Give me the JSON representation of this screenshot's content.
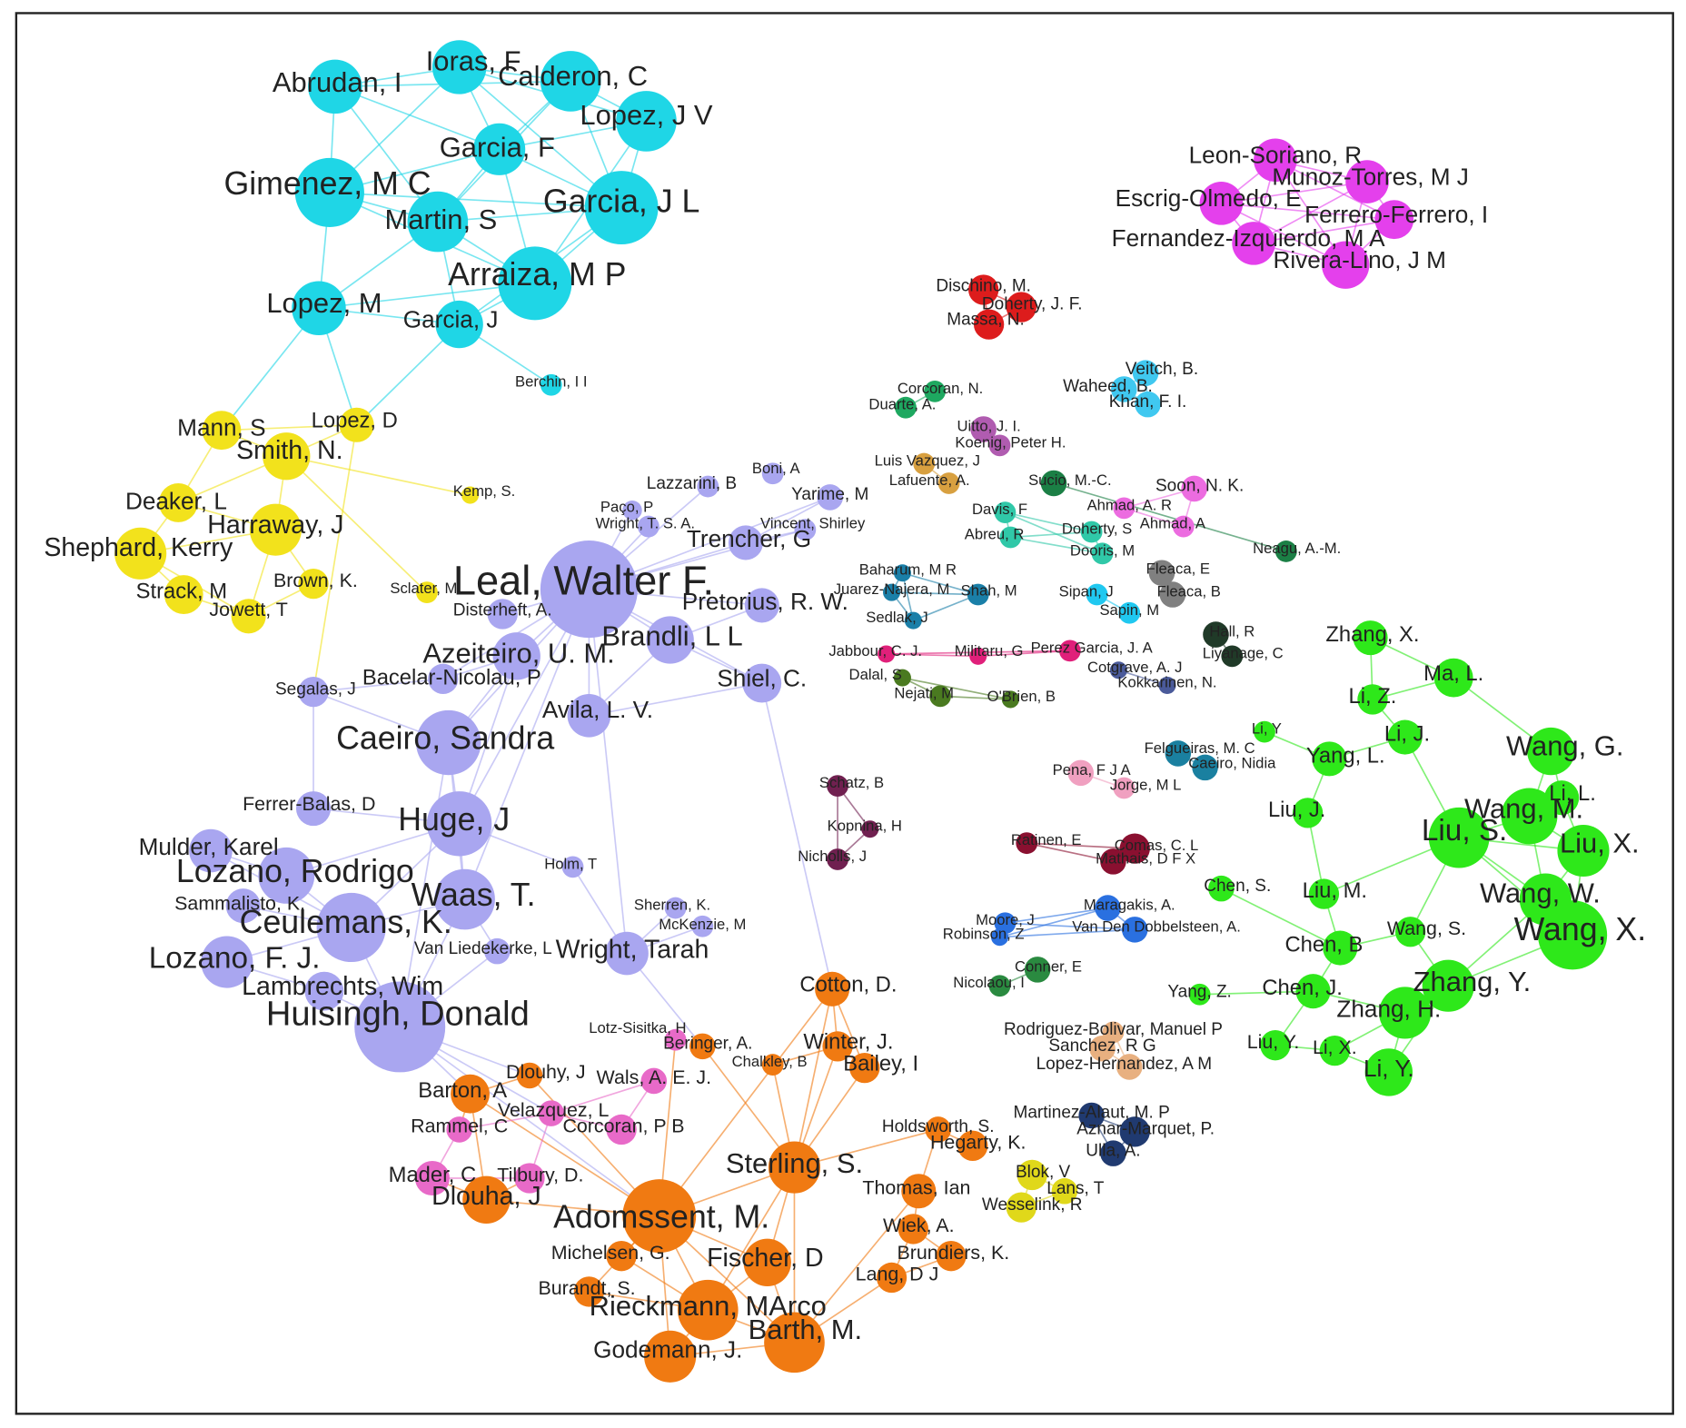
{
  "clusters": [
    {
      "color": "#1fd6e6",
      "nodes": [
        "Abrudan, I",
        "Ioras, F",
        "Calderon, C",
        "Lopez, J V",
        "Garcia, F",
        "Gimenez, M C",
        "Martin, S",
        "Garcia, J L",
        "Arraiza, M P",
        "Lopez, M",
        "Garcia, J",
        "Berchin, I I"
      ]
    },
    {
      "color": "#f2e21c",
      "nodes": [
        "Lopez, D",
        "Mann, S",
        "Smith, N.",
        "Kemp, S.",
        "Deaker, L",
        "Harraway, J",
        "Shephard, Kerry",
        "Brown, K.",
        "Strack, M",
        "Jowett, T",
        "Sclater, M"
      ]
    },
    {
      "color": "#a9a6f0",
      "nodes": [
        "Leal, Walter F.",
        "Lazzarini, B",
        "Boni, A",
        "Yarime, M",
        "Paço, P",
        "Wright, T. S. A.",
        "Vincent, Shirley",
        "Trencher, G",
        "Disterheft, A.",
        "Pretorius, R. W.",
        "Brandli, L L",
        "Azeiteiro, U. M.",
        "Shiel, C.",
        "Segalas, J",
        "Bacelar-Nicolau, P",
        "Avila, L. V.",
        "Caeiro, Sandra",
        "Ferrer-Balas, D",
        "Huge, J",
        "Mulder, Karel",
        "Lozano, Rodrigo",
        "Holm, T",
        "Waas, T.",
        "Sammalisto, K.",
        "Ceulemans, K.",
        "Sherren, K.",
        "McKenzie, M",
        "Van Liedekerke, L",
        "Wright, Tarah",
        "Lozano, F. J.",
        "Lambrechts, Wim",
        "Huisingh, Donald"
      ]
    },
    {
      "color": "#f07a12",
      "nodes": [
        "Cotton, D.",
        "Beringer, A.",
        "Winter, J.",
        "Chalkley, B",
        "Bailey, I",
        "Dlouhy, J",
        "Barton, A",
        "Holdsworth, S.",
        "Hegarty, K.",
        "Sterling, S.",
        "Dlouha, J",
        "Thomas, Ian",
        "Adomssent, M.",
        "Wiek, A.",
        "Michelsen, G.",
        "Fischer, D",
        "Brundiers, K.",
        "Lang, D J",
        "Burandt, S.",
        "Rieckmann, MArco",
        "Barth, M.",
        "Godemann, J."
      ]
    },
    {
      "color": "#e86ac8",
      "nodes": [
        "Lotz-Sisitka, H",
        "Wals, A. E. J.",
        "Velazquez, L",
        "Rammel, C",
        "Corcoran, P B",
        "Mader, C",
        "Tilbury, D."
      ]
    },
    {
      "color": "#2ee81a",
      "nodes": [
        "Zhang, X.",
        "Ma, L.",
        "Li, Z.",
        "Li, Y",
        "Li, J.",
        "Yang, L.",
        "Wang, G.",
        "Liu, J.",
        "Li, L.",
        "Wang, M.",
        "Liu, S.",
        "Liu, X.",
        "Chen, S.",
        "Liu, M.",
        "Wang, W.",
        "Wang, S.",
        "Wang, X.",
        "Chen, B",
        "Chen, J.",
        "Zhang, Y.",
        "Yang, Z.",
        "Zhang, H.",
        "Liu, Y.",
        "Li, X.",
        "Li, Y."
      ]
    },
    {
      "color": "#e440ec",
      "nodes": [
        "Leon-Soriano, R",
        "Munoz-Torres, M J",
        "Escrig-Olmedo, E",
        "Ferrero-Ferrero, I",
        "Fernandez-Izquierdo, M A",
        "Rivera-Lino, J M"
      ]
    },
    {
      "color": "#dd1c1c",
      "nodes": [
        "Dischino, M.",
        "Doherty, J. F.",
        "Massa, N."
      ]
    },
    {
      "color": "#e0d81a",
      "nodes": [
        "Blok, V",
        "Lans, T",
        "Wesselink, R"
      ]
    },
    {
      "color": "#40c8f0",
      "nodes": [
        "Veitch, B.",
        "Waheed, B.",
        "Khan, F. I."
      ]
    },
    {
      "color": "#1ea860",
      "nodes": [
        "Corcoran, N.",
        "Duarte, A."
      ]
    },
    {
      "color": "#b05cb0",
      "nodes": [
        "Uitto, J. I.",
        "Koenig, Peter H."
      ]
    },
    {
      "color": "#d8a040",
      "nodes": [
        "Luis Vazquez, J",
        "Lafuente, A."
      ]
    },
    {
      "color": "#1b7f45",
      "nodes": [
        "Sucio, M.-C.",
        "Neagu, A.-M."
      ]
    },
    {
      "color": "#ec6ce0",
      "nodes": [
        "Soon, N. K.",
        "Ahmad, A. R",
        "Ahmad, A"
      ]
    },
    {
      "color": "#30c8a8",
      "nodes": [
        "Davis, F",
        "Abreu, R",
        "Doherty, S",
        "Dooris, M"
      ]
    },
    {
      "color": "#808080",
      "nodes": [
        "Fleaca, E",
        "Fleaca, B"
      ]
    },
    {
      "color": "#20c8f0",
      "nodes": [
        "Sipan, J",
        "Sapin, M"
      ]
    },
    {
      "color": "#1a7fa8",
      "nodes": [
        "Baharum, M R",
        "Juarez-Najera, M",
        "Shah, M",
        "Sedlak, J"
      ]
    },
    {
      "color": "#e0207a",
      "nodes": [
        "Militaru, G",
        "Jabbour, C. J.",
        "Perez Garcia, J. A"
      ]
    },
    {
      "color": "#4a5a9a",
      "nodes": [
        "Cotgrave, A. J",
        "Kokkarinen, N."
      ]
    },
    {
      "color": "#203a28",
      "nodes": [
        "Hall, R",
        "Liyanage, C"
      ]
    },
    {
      "color": "#4a7a20",
      "nodes": [
        "Dalal, S",
        "Nejati, M",
        "O'Brien, B"
      ]
    },
    {
      "color": "#1a80a0",
      "nodes": [
        "Felgueiras, M. C",
        "Caeiro, Nidia"
      ]
    },
    {
      "color": "#f0a0c0",
      "nodes": [
        "Pena, F J A",
        "Jorge, M L"
      ]
    },
    {
      "color": "#702050",
      "nodes": [
        "Schatz, B",
        "Kopnina, H",
        "Nicholls, J"
      ]
    },
    {
      "color": "#8a1030",
      "nodes": [
        "Comas, C. L",
        "Mathais, D F X",
        "Ratinen, E"
      ]
    },
    {
      "color": "#2a70e0",
      "nodes": [
        "Maragakis, A.",
        "Van Den Dobbelsteen, A.",
        "Moore, J",
        "Robinson, Z"
      ]
    },
    {
      "color": "#2a8a40",
      "nodes": [
        "Conner, E",
        "Nicolaou, I"
      ]
    },
    {
      "color": "#e8b080",
      "nodes": [
        "Rodriguez-Bolivar, Manuel P",
        "Sanchez, R G",
        "Lopez-Hernandez, A M"
      ]
    },
    {
      "color": "#203a70",
      "nodes": [
        "Martinez-Alaut, M. P",
        "Aznar-Marquet, P.",
        "Ulla, A."
      ]
    }
  ]
}
